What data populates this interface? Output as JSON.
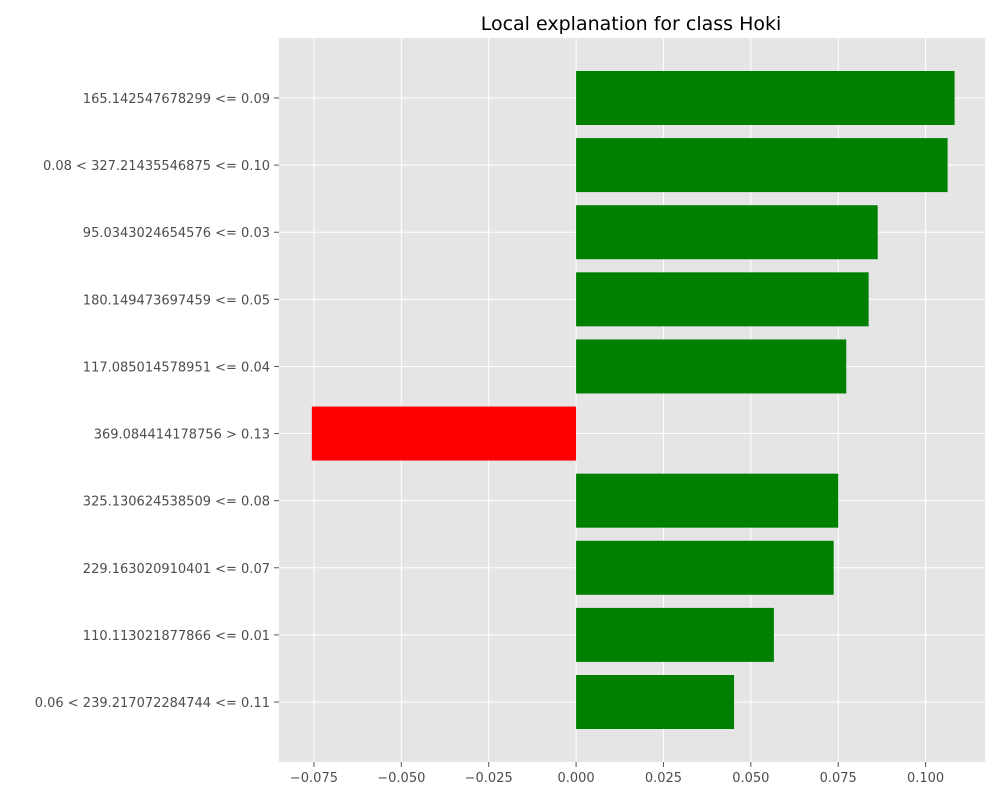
{
  "chart_data": {
    "type": "bar",
    "orientation": "horizontal",
    "title": "Local explanation for class Hoki",
    "xlabel": "",
    "ylabel": "",
    "xlim": [
      -0.085,
      0.117
    ],
    "xticks": [
      -0.075,
      -0.05,
      -0.025,
      0.0,
      0.025,
      0.05,
      0.075,
      0.1
    ],
    "xtick_labels": [
      "−0.075",
      "−0.050",
      "−0.025",
      "0.000",
      "0.025",
      "0.050",
      "0.075",
      "0.100"
    ],
    "grid": true,
    "categories": [
      "165.142547678299 <= 0.09",
      "0.08 < 327.21435546875 <= 0.10",
      "95.0343024654576 <= 0.03",
      "180.149473697459 <= 0.05",
      "117.085014578951 <= 0.04",
      "369.084414178756 > 0.13",
      "325.130624538509 <= 0.08",
      "229.163020910401 <= 0.07",
      "110.113021877866 <= 0.01",
      "0.06 < 239.217072284744 <= 0.11"
    ],
    "values": [
      0.1083,
      0.1063,
      0.0863,
      0.0837,
      0.0773,
      -0.0756,
      0.075,
      0.0737,
      0.0566,
      0.0452
    ],
    "colors": {
      "positive": "#008000",
      "negative": "#ff0000",
      "plot_background": "#e5e5e5",
      "grid": "#ffffff"
    }
  }
}
